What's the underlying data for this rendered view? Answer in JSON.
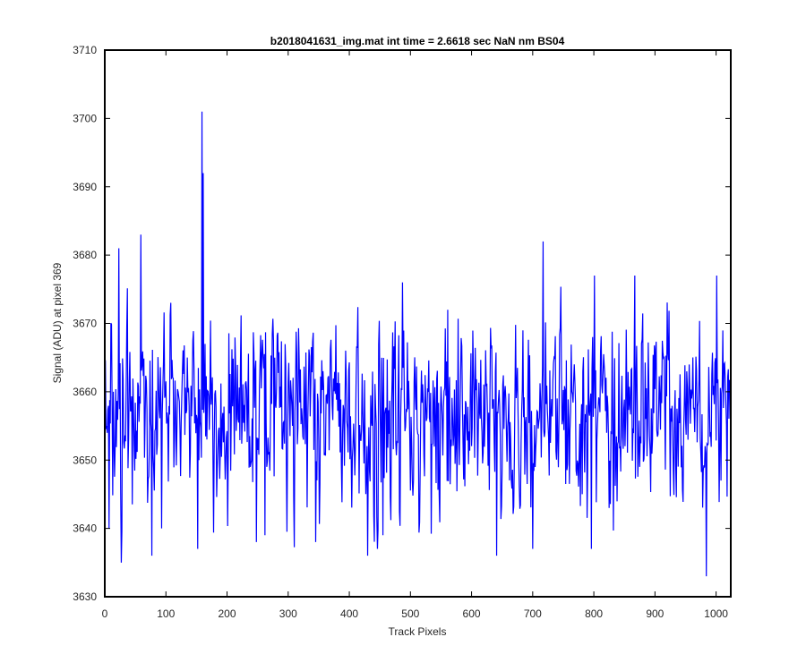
{
  "chart_data": {
    "type": "line",
    "title": "b2018041631_img.mat int time = 2.6618 sec  NaN nm BS04",
    "xlabel": "Track Pixels",
    "ylabel": "Signal (ADU) at pixel 369",
    "xlim": [
      0,
      1024
    ],
    "ylim": [
      3630,
      3710
    ],
    "xticks": [
      "0",
      "100",
      "200",
      "300",
      "400",
      "500",
      "600",
      "700",
      "800",
      "900",
      "1000"
    ],
    "yticks": [
      "3630",
      "3640",
      "3650",
      "3660",
      "3670",
      "3680",
      "3690",
      "3700",
      "3710"
    ],
    "grid": false,
    "legend": "none",
    "series": [
      {
        "color": "#0000ff",
        "noise_mean": 3657,
        "noise_sd": 7,
        "n_points": 1024,
        "x": [
          0,
          7,
          14,
          23,
          27,
          59,
          77,
          93,
          152,
          159,
          161,
          248,
          262,
          345,
          430,
          455,
          561,
          641,
          700,
          717,
          796,
          801,
          867,
          984,
          1001,
          1008,
          1023
        ],
        "values": [
          3665,
          3640,
          3660,
          3681,
          3635,
          3683,
          3636,
          3640,
          3637,
          3701,
          3692,
          3638,
          3639,
          3638,
          3636,
          3639,
          3672,
          3636,
          3637,
          3682,
          3637,
          3677,
          3677,
          3633,
          3677,
          3647,
          3661
        ]
      }
    ]
  }
}
